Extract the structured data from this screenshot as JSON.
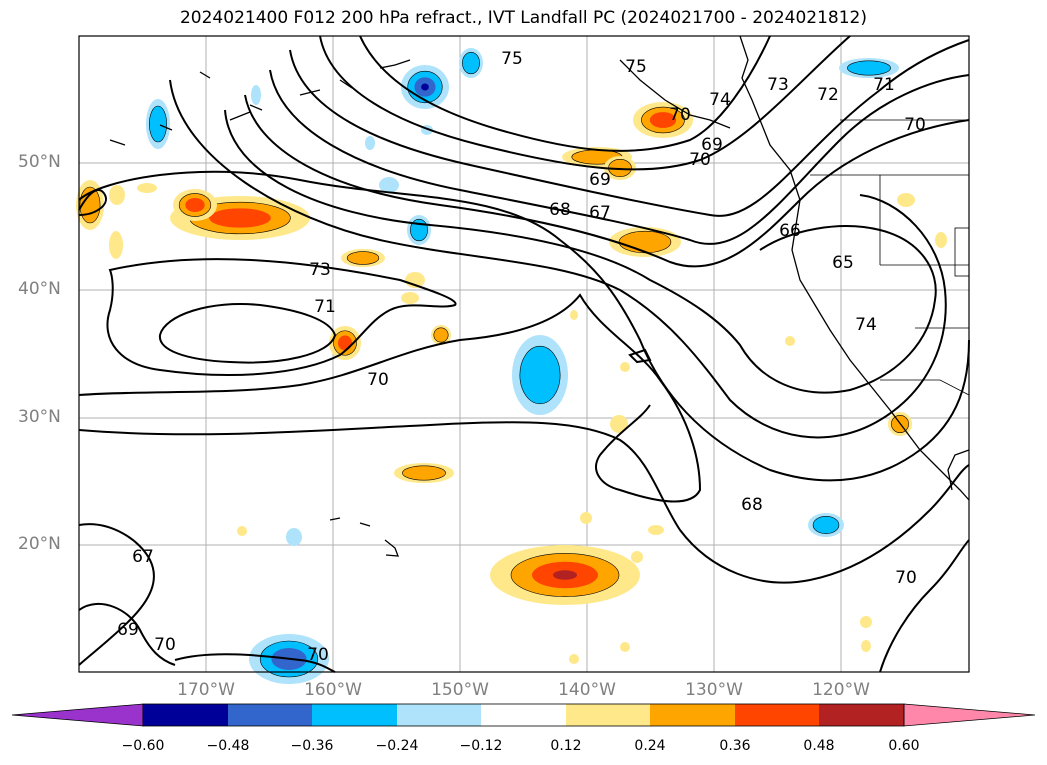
{
  "title": "2024021400 F012 200 hPa refract., IVT Landfall PC (2024021700 - 2024021812)",
  "latitude_labels": [
    "50°N",
    "40°N",
    "30°N",
    "20°N"
  ],
  "longitude_labels": [
    "170°W",
    "160°W",
    "150°W",
    "140°W",
    "130°W",
    "120°W"
  ],
  "contour_labels": [
    "75",
    "74",
    "73",
    "72",
    "71",
    "70",
    "69",
    "68",
    "67",
    "66",
    "65",
    "75",
    "74",
    "73",
    "71",
    "70",
    "68",
    "67",
    "69",
    "70",
    "70",
    "70",
    "70",
    "69",
    "70"
  ],
  "colorbar": {
    "ticks": [
      "−0.60",
      "−0.48",
      "−0.36",
      "−0.24",
      "−0.12",
      "0.12",
      "0.24",
      "0.36",
      "0.48",
      "0.60"
    ],
    "colors": [
      "#9933cc",
      "#000099",
      "#3366cc",
      "#00bfff",
      "#aee3fb",
      "#ffffff",
      "#ffe88a",
      "#ffa500",
      "#ff4500",
      "#b22222",
      "#ff88aa"
    ]
  },
  "shading_colors": {
    "neg_light": "#aee3fb",
    "neg_mid": "#00bfff",
    "neg_dark": "#3366cc",
    "neg_darkest": "#000099",
    "pos_light": "#ffe88a",
    "pos_mid": "#ffa500",
    "pos_dark": "#ff4500",
    "pos_darkest": "#b22222"
  }
}
